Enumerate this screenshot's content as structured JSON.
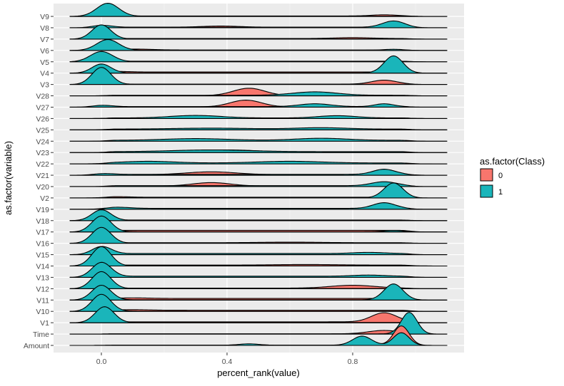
{
  "chart_data": {
    "type": "ridgeline",
    "xlabel": "percent_rank(value)",
    "ylabel": "as.factor(variable)",
    "xlim": [
      -0.15,
      1.15
    ],
    "x_ticks": [
      "0.0",
      "0.4",
      "0.8"
    ],
    "x_tick_values": [
      0.0,
      0.4,
      0.8
    ],
    "grid": true,
    "legend": {
      "title": "as.factor(Class)",
      "position": "right",
      "entries": [
        {
          "label": "0",
          "color": "#F8766D"
        },
        {
          "label": "1",
          "color": "#00BFC4"
        }
      ]
    },
    "fill_colors": {
      "0": "#F8766D",
      "1": "#1AB5BA"
    },
    "density_range": [
      -0.1,
      1.1
    ],
    "rows_note_units": "peaks as [center, relative height in row units, sd]",
    "rows": [
      {
        "label": "Amount",
        "floor": [
          0.02,
          0.02
        ],
        "class0": [
          [
            0.955,
            1.7,
            0.025
          ],
          [
            0.83,
            0.5,
            0.03
          ],
          [
            0.47,
            0.1,
            0.03
          ]
        ],
        "class1": [
          [
            0.955,
            1.1,
            0.025
          ],
          [
            0.83,
            0.8,
            0.03
          ],
          [
            0.47,
            0.12,
            0.03
          ]
        ]
      },
      {
        "label": "Time",
        "floor": [
          0.02,
          0.02
        ],
        "class0": [
          [
            0.9,
            0.3,
            0.05
          ]
        ],
        "class1": [
          [
            0.98,
            1.9,
            0.025
          ]
        ]
      },
      {
        "label": "V1",
        "floor": [
          0.08,
          0.02
        ],
        "class0": [
          [
            0.9,
            0.8,
            0.04
          ]
        ],
        "class1": [
          [
            0.01,
            1.4,
            0.03
          ]
        ]
      },
      {
        "label": "V10",
        "floor": [
          0.1,
          0.02
        ],
        "class0": [
          [
            0.1,
            0.05,
            0.05
          ]
        ],
        "class1": [
          [
            0.0,
            1.5,
            0.03
          ]
        ]
      },
      {
        "label": "V11",
        "floor": [
          0.14,
          0.02
        ],
        "class0": [
          [
            0.1,
            0.05,
            0.05
          ]
        ],
        "class1": [
          [
            0.0,
            1.3,
            0.03
          ],
          [
            0.93,
            1.4,
            0.03
          ]
        ]
      },
      {
        "label": "V12",
        "floor": [
          0.05,
          0.02
        ],
        "class0": [
          [
            0.8,
            0.25,
            0.07
          ]
        ],
        "class1": [
          [
            0.0,
            1.5,
            0.03
          ]
        ]
      },
      {
        "label": "V13",
        "floor": [
          0.05,
          0.1
        ],
        "class0": [],
        "class1": [
          [
            0.0,
            1.3,
            0.03
          ],
          [
            0.85,
            0.1,
            0.05
          ]
        ]
      },
      {
        "label": "V14",
        "floor": [
          0.08,
          0.02
        ],
        "class0": [
          [
            0.65,
            0.05,
            0.1
          ]
        ],
        "class1": [
          [
            0.0,
            1.7,
            0.03
          ]
        ]
      },
      {
        "label": "V15",
        "floor": [
          0.03,
          0.1
        ],
        "class0": [],
        "class1": [
          [
            0.0,
            0.7,
            0.03
          ],
          [
            0.85,
            0.1,
            0.05
          ]
        ]
      },
      {
        "label": "V16",
        "floor": [
          0.05,
          0.02
        ],
        "class0": [
          [
            0.6,
            0.05,
            0.1
          ]
        ],
        "class1": [
          [
            0.0,
            1.4,
            0.03
          ]
        ]
      },
      {
        "label": "V17",
        "floor": [
          0.14,
          0.02
        ],
        "class0": [],
        "class1": [
          [
            0.0,
            1.4,
            0.03
          ],
          [
            0.93,
            0.1,
            0.03
          ]
        ]
      },
      {
        "label": "V18",
        "floor": [
          0.05,
          0.03
        ],
        "class0": [],
        "class1": [
          [
            0.0,
            0.95,
            0.03
          ]
        ]
      },
      {
        "label": "V19",
        "floor": [
          0.05,
          0.08
        ],
        "class0": [],
        "class1": [
          [
            0.9,
            0.5,
            0.035
          ],
          [
            0.05,
            0.1,
            0.04
          ]
        ]
      },
      {
        "label": "V2",
        "floor": [
          0.06,
          0.02
        ],
        "class0": [
          [
            0.05,
            0.05,
            0.04
          ]
        ],
        "class1": [
          [
            0.93,
            1.3,
            0.03
          ]
        ]
      },
      {
        "label": "V20",
        "floor": [
          0.05,
          0.08
        ],
        "class0": [
          [
            0.35,
            0.3,
            0.06
          ]
        ],
        "class1": [
          [
            0.9,
            0.35,
            0.04
          ]
        ]
      },
      {
        "label": "V21",
        "floor": [
          0.05,
          0.08
        ],
        "class0": [
          [
            0.35,
            0.25,
            0.08
          ]
        ],
        "class1": [
          [
            0.9,
            0.45,
            0.035
          ],
          [
            0.0,
            0.12,
            0.03
          ]
        ]
      },
      {
        "label": "V22",
        "floor": [
          0.05,
          0.08
        ],
        "class0": [],
        "class1": [
          [
            0.15,
            0.15,
            0.08
          ],
          [
            0.6,
            0.15,
            0.1
          ]
        ]
      },
      {
        "label": "V23",
        "floor": [
          0.03,
          0.08
        ],
        "class0": [
          [
            0.4,
            0.2,
            0.1
          ]
        ],
        "class1": [
          [
            0.35,
            0.15,
            0.12
          ]
        ]
      },
      {
        "label": "V24",
        "floor": [
          0.05,
          0.08
        ],
        "class0": [],
        "class1": [
          [
            0.3,
            0.15,
            0.1
          ],
          [
            0.7,
            0.18,
            0.08
          ]
        ]
      },
      {
        "label": "V25",
        "floor": [
          0.05,
          0.07
        ],
        "class0": [],
        "class1": [
          [
            0.35,
            0.08,
            0.12
          ],
          [
            0.7,
            0.12,
            0.08
          ]
        ]
      },
      {
        "label": "V26",
        "floor": [
          0.05,
          0.05
        ],
        "class0": [],
        "class1": [
          [
            0.3,
            0.22,
            0.08
          ],
          [
            0.75,
            0.2,
            0.06
          ]
        ]
      },
      {
        "label": "V27",
        "floor": [
          0.02,
          0.05
        ],
        "class0": [
          [
            0.46,
            0.6,
            0.05
          ]
        ],
        "class1": [
          [
            0.68,
            0.25,
            0.05
          ],
          [
            0.9,
            0.25,
            0.03
          ],
          [
            0.0,
            0.15,
            0.03
          ]
        ]
      },
      {
        "label": "V28",
        "floor": [
          0.02,
          0.05
        ],
        "class0": [
          [
            0.47,
            0.65,
            0.05
          ]
        ],
        "class1": [
          [
            0.68,
            0.3,
            0.07
          ]
        ]
      },
      {
        "label": "V3",
        "floor": [
          0.03,
          0.02
        ],
        "class0": [
          [
            0.9,
            0.35,
            0.04
          ]
        ],
        "class1": [
          [
            0.0,
            1.5,
            0.03
          ]
        ]
      },
      {
        "label": "V4",
        "floor": [
          0.1,
          0.02
        ],
        "class0": [
          [
            0.05,
            0.05,
            0.04
          ]
        ],
        "class1": [
          [
            0.93,
            1.5,
            0.03
          ],
          [
            0.0,
            0.8,
            0.03
          ]
        ]
      },
      {
        "label": "V5",
        "floor": [
          0.05,
          0.02
        ],
        "class0": [],
        "class1": [
          [
            0.0,
            0.9,
            0.035
          ]
        ]
      },
      {
        "label": "V6",
        "floor": [
          0.04,
          0.02
        ],
        "class0": [
          [
            0.1,
            0.08,
            0.06
          ]
        ],
        "class1": [
          [
            0.02,
            0.95,
            0.035
          ],
          [
            0.93,
            0.08,
            0.03
          ]
        ]
      },
      {
        "label": "V7",
        "floor": [
          0.05,
          0.02
        ],
        "class0": [
          [
            0.8,
            0.08,
            0.06
          ]
        ],
        "class1": [
          [
            0.0,
            1.25,
            0.03
          ]
        ]
      },
      {
        "label": "V8",
        "floor": [
          0.05,
          0.05
        ],
        "class0": [
          [
            0.38,
            0.1,
            0.06
          ]
        ],
        "class1": [
          [
            0.93,
            0.55,
            0.035
          ],
          [
            0.0,
            0.2,
            0.03
          ]
        ]
      },
      {
        "label": "V9",
        "floor": [
          0.04,
          0.02
        ],
        "class0": [
          [
            0.9,
            0.1,
            0.04
          ]
        ],
        "class1": [
          [
            0.02,
            1.15,
            0.035
          ]
        ]
      }
    ]
  }
}
